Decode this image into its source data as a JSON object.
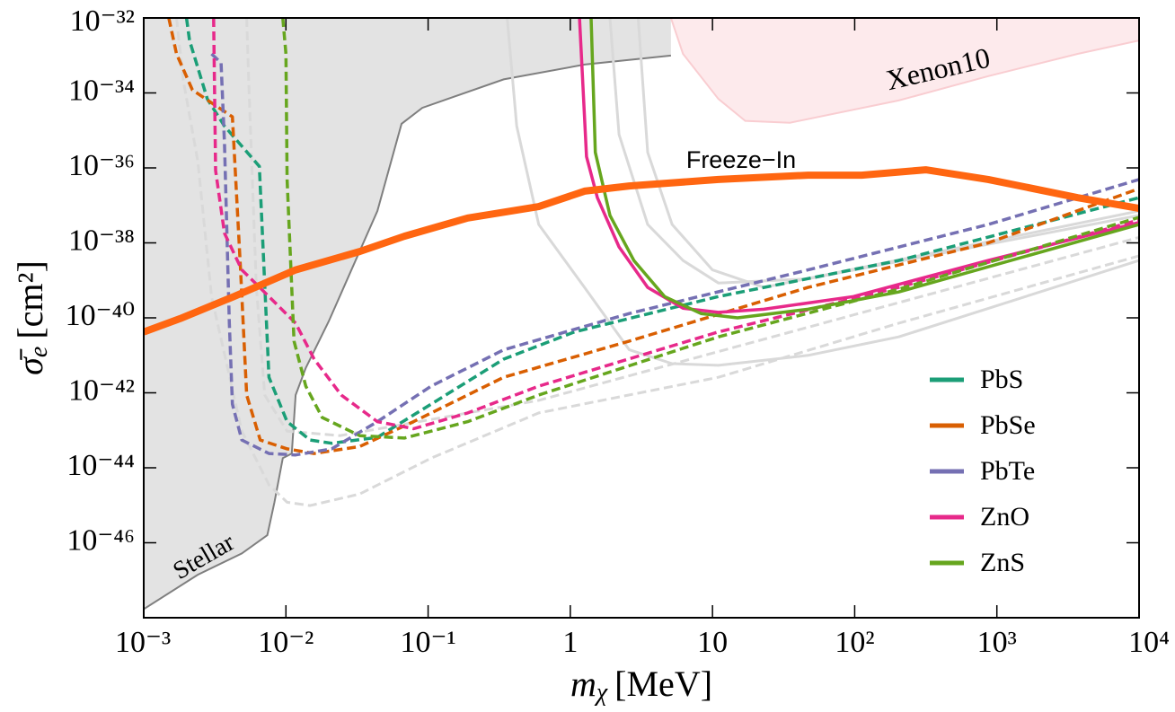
{
  "chart_data": {
    "type": "line",
    "x_label": {
      "symbol": "m",
      "subscript": "χ",
      "unit": "[MeV]"
    },
    "y_label": {
      "symbol": "σ̄",
      "subscript": "e",
      "unit": "[cm²]"
    },
    "xscale": "log",
    "yscale": "log",
    "xlim": [
      0.001,
      10000
    ],
    "ylim": [
      1e-48,
      1e-32
    ],
    "xticks": [
      {
        "value": 0.001,
        "label": "10⁻³"
      },
      {
        "value": 0.01,
        "label": "10⁻²"
      },
      {
        "value": 0.1,
        "label": "10⁻¹"
      },
      1,
      10,
      {
        "value": 100,
        "label": "10²"
      },
      {
        "value": 1000,
        "label": "10³"
      },
      {
        "value": 10000,
        "label": "10⁴"
      }
    ],
    "yticks": [
      {
        "value": 1e-32,
        "label": "10⁻³²"
      },
      {
        "value": 1e-34,
        "label": "10⁻³⁴"
      },
      {
        "value": 1e-36,
        "label": "10⁻³⁶"
      },
      {
        "value": 1e-38,
        "label": "10⁻³⁸"
      },
      {
        "value": 1e-40,
        "label": "10⁻⁴⁰"
      },
      {
        "value": 1e-42,
        "label": "10⁻⁴²"
      },
      {
        "value": 1e-44,
        "label": "10⁻⁴⁴"
      },
      {
        "value": 1e-46,
        "label": "10⁻⁴⁶"
      }
    ],
    "legend": "lower right",
    "regions": [
      {
        "label": "Stellar",
        "fill": "#e3e3e3",
        "stroke": "#7f7f7f",
        "label_color": "#8c8c8c",
        "x": [
          0.001,
          0.0024,
          0.0049,
          0.0074,
          0.0083,
          0.0095,
          0.011,
          0.0117,
          0.0138,
          0.02,
          0.044,
          0.065,
          0.091,
          0.34,
          1.26,
          5.1
        ],
        "values": [
          1.7e-48,
          1.4e-47,
          5.2e-47,
          1.6e-46,
          1.2e-45,
          1.8e-44,
          2.4e-44,
          8.7e-43,
          4.6e-42,
          8e-41,
          7.1e-38,
          1.5e-35,
          4e-35,
          2.3e-34,
          5.7e-34,
          9.9e-34
        ]
      },
      {
        "label": "Xenon10",
        "fill": "#fdeaec",
        "stroke": "#f9cdd1",
        "label_color": "#ee1111",
        "x": [
          5.1,
          6.2,
          11,
          17,
          35,
          204,
          870,
          3700,
          10000
        ],
        "values": [
          1e-32,
          1.1e-33,
          6.9e-35,
          1.8e-35,
          1.6e-35,
          6.3e-35,
          2.8e-34,
          1.1e-33,
          2.5e-33
        ]
      }
    ],
    "freeze_in": {
      "label": "Freeze−In",
      "color": "#ff6611",
      "x": [
        0.001,
        0.0018,
        0.0043,
        0.0117,
        0.033,
        0.068,
        0.19,
        0.6,
        1.26,
        2.6,
        11,
        47,
        112,
        316,
        870,
        3700,
        10000
      ],
      "values": [
        4.2e-41,
        9.5e-41,
        3.7e-40,
        1.9e-39,
        5.9e-39,
        1.5e-38,
        4.6e-38,
        9.3e-38,
        2.4e-37,
        3.3e-37,
        4.9e-37,
        6.4e-37,
        6.4e-37,
        8.9e-37,
        4.9e-37,
        1.6e-37,
        8.3e-38
      ]
    },
    "reference_curves": [
      {
        "color": "#d9d9d9",
        "style": "solid",
        "x": [
          0.36,
          0.42,
          0.6,
          1.26,
          2.6,
          5.2,
          11,
          47,
          204,
          10000
        ],
        "values": [
          1e-32,
          1.3e-35,
          3.1e-38,
          6.5e-40,
          1.4e-41,
          6e-42,
          5.4e-42,
          1e-41,
          3.1e-41,
          3.4e-39
        ]
      },
      {
        "color": "#d9d9d9",
        "style": "solid",
        "x": [
          1.9,
          2.2,
          3.5,
          6.2,
          11,
          47,
          10000
        ],
        "values": [
          1e-32,
          7.8e-36,
          3.1e-38,
          3.4e-39,
          8.5e-40,
          1.1e-39,
          5.4e-38
        ]
      },
      {
        "color": "#d9d9d9",
        "style": "solid",
        "x": [
          3.0,
          3.5,
          5.2,
          10,
          23,
          10000
        ],
        "values": [
          1e-32,
          2.6e-36,
          3.1e-38,
          1.9e-39,
          6.5e-40,
          7.1e-38
        ]
      },
      {
        "color": "#d9d9d9",
        "style": "dashed",
        "x": [
          0.0017,
          0.0019,
          0.0024,
          0.003,
          0.0049,
          0.0076,
          0.0102,
          0.0148,
          0.033,
          0.105,
          0.6,
          11,
          204,
          10000
        ],
        "values": [
          1e-32,
          2.1e-34,
          1.5e-36,
          3.7e-40,
          9.5e-44,
          3.5e-45,
          1.2e-45,
          9.8e-46,
          2e-45,
          1.8e-44,
          2.9e-43,
          2.6e-42,
          7.2e-41,
          4.5e-39
        ]
      },
      {
        "color": "#d9d9d9",
        "style": "dashed",
        "x": [
          0.0053,
          0.0055,
          0.0062,
          0.0071,
          0.0102,
          0.024,
          0.6,
          10000
        ],
        "values": [
          1e-32,
          1.2e-34,
          6.5e-40,
          8.7e-43,
          9.5e-44,
          7.2e-44,
          6.3e-43,
          1.4e-38
        ]
      }
    ],
    "series": [
      {
        "name": "PbS",
        "color": "#1b9e77",
        "curves": [
          {
            "style": "dashed",
            "x": [
              0.002,
              0.0021,
              0.0028,
              0.0037,
              0.0065,
              0.0076,
              0.0102,
              0.0148,
              0.021,
              0.044,
              0.105,
              0.34,
              1.07,
              11,
              204,
              10000
            ],
            "values": [
              1e-32,
              2.5e-33,
              6.9e-35,
              1.3e-35,
              1.1e-36,
              2.6e-42,
              1.7e-43,
              5.5e-44,
              4.5e-44,
              6.5e-44,
              5e-43,
              7.9e-42,
              4.2e-41,
              3.7e-40,
              3.4e-39,
              1.6e-37
            ]
          }
        ]
      },
      {
        "name": "PbSe",
        "color": "#d95f02",
        "curves": [
          {
            "style": "dashed",
            "x": [
              0.0015,
              0.0017,
              0.0022,
              0.0042,
              0.0048,
              0.0053,
              0.0066,
              0.0102,
              0.0158,
              0.033,
              0.079,
              0.34,
              2.6,
              47,
              870,
              10000
            ],
            "values": [
              1e-32,
              1.1e-33,
              1.2e-34,
              2.3e-35,
              1.9e-39,
              8.7e-43,
              5.5e-44,
              3.2e-44,
              2.4e-44,
              3.7e-44,
              1.7e-43,
              2.6e-42,
              2.4e-41,
              6.5e-40,
              1e-38,
              2.8e-37
            ]
          }
        ]
      },
      {
        "name": "PbTe",
        "color": "#7570b3",
        "curves": [
          {
            "style": "dashed",
            "x": [
              0.003,
              0.0035,
              0.0037,
              0.004,
              0.0042,
              0.0049,
              0.0076,
              0.0117,
              0.021,
              0.044,
              0.105,
              0.34,
              2.6,
              47,
              870,
              10000
            ],
            "values": [
              1.1e-33,
              6.3e-34,
              4.5e-36,
              7.2e-41,
              5e-43,
              5.5e-44,
              2.4e-44,
              2.2e-44,
              3.2e-44,
              1.7e-43,
              1.5e-42,
              1.4e-41,
              1.3e-40,
              1.9e-39,
              3.1e-38,
              4.9e-37
            ]
          }
        ]
      },
      {
        "name": "ZnO",
        "color": "#e7298a",
        "curves": [
          {
            "style": "dashed",
            "x": [
              0.0031,
              0.0032,
              0.0037,
              0.0049,
              0.0076,
              0.0117,
              0.0158,
              0.0245,
              0.044,
              0.079,
              0.19,
              0.6,
              11,
              204,
              10000
            ],
            "values": [
              1e-32,
              8.5e-37,
              1.8e-38,
              1.9e-39,
              3.7e-40,
              7.2e-41,
              7.9e-42,
              8.7e-43,
              1.7e-43,
              1.1e-43,
              2.9e-43,
              1.5e-42,
              4.2e-41,
              6.5e-40,
              4.1e-38
            ]
          },
          {
            "style": "solid",
            "x": [
              1.16,
              1.3,
              1.55,
              2.2,
              3.5,
              6.2,
              11,
              23,
              98,
              870,
              10000
            ],
            "values": [
              1e-32,
              2e-36,
              1.6e-37,
              7.8e-39,
              6.5e-40,
              1.8e-40,
              1.4e-40,
              1.7e-40,
              3.7e-40,
              3.4e-39,
              3.5e-38
            ]
          }
        ]
      },
      {
        "name": "ZnS",
        "color": "#66a61e",
        "curves": [
          {
            "style": "dashed",
            "x": [
              0.0095,
              0.01,
              0.0102,
              0.0114,
              0.0138,
              0.018,
              0.033,
              0.068,
              0.19,
              0.6,
              11,
              204,
              10000
            ],
            "values": [
              1e-32,
              1.1e-33,
              4.9e-37,
              2.4e-41,
              1.5e-42,
              2.2e-43,
              7.2e-44,
              6.2e-44,
              1.7e-43,
              8.7e-43,
              3.1e-41,
              5.8e-40,
              4.8e-38
            ]
          },
          {
            "style": "solid",
            "x": [
              1.4,
              1.5,
              1.9,
              2.8,
              4.6,
              8.3,
              15,
              47,
              204,
              10000
            ],
            "values": [
              1e-32,
              2.6e-36,
              5.4e-38,
              3.4e-39,
              3.7e-40,
              1.3e-40,
              1e-40,
              1.7e-40,
              4.9e-40,
              3.1e-38
            ]
          }
        ]
      }
    ]
  }
}
